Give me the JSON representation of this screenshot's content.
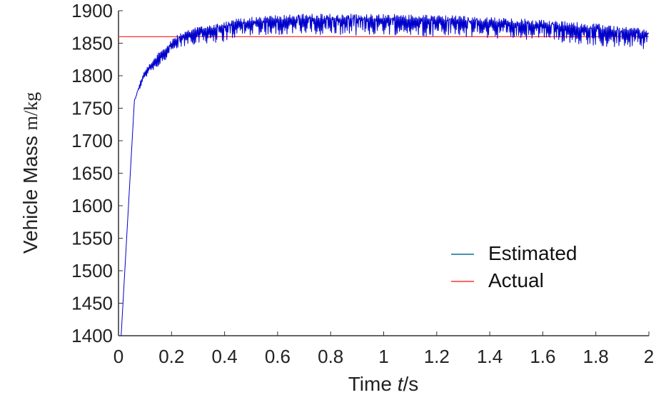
{
  "chart_data": {
    "type": "line",
    "title": "",
    "xlabel": {
      "prefix": "Time ",
      "var": "t",
      "suffix": "/s"
    },
    "ylabel": {
      "main": "Vehicle Mass ",
      "unit": "m/kg"
    },
    "xlim": [
      0,
      2
    ],
    "ylim": [
      1400,
      1900
    ],
    "xticks": [
      0,
      0.2,
      0.4,
      0.6,
      0.8,
      1,
      1.2,
      1.4,
      1.6,
      1.8,
      2
    ],
    "xtick_labels": [
      "0",
      "0.2",
      "0.4",
      "0.6",
      "0.8",
      "1",
      "1.2",
      "1.4",
      "1.6",
      "1.8",
      "2"
    ],
    "yticks": [
      1400,
      1450,
      1500,
      1550,
      1600,
      1650,
      1700,
      1750,
      1800,
      1850,
      1900
    ],
    "ytick_labels": [
      "1400",
      "1450",
      "1500",
      "1550",
      "1600",
      "1650",
      "1700",
      "1750",
      "1800",
      "1850",
      "1900"
    ],
    "grid": false,
    "legend_position": "lower-right",
    "series": [
      {
        "name": "Estimated",
        "color": "#0000cc",
        "legend_color": "#0a6f8f",
        "style": "noisy-envelope",
        "x": [
          0.01,
          0.06,
          0.07,
          0.08,
          0.1,
          0.12,
          0.14,
          0.16,
          0.18,
          0.2,
          0.22,
          0.24,
          0.26,
          0.28,
          0.3,
          0.35,
          0.4,
          0.45,
          0.5,
          0.6,
          0.7,
          0.8,
          0.9,
          1.0,
          1.1,
          1.2,
          1.3,
          1.4,
          1.5,
          1.6,
          1.7,
          1.8,
          1.9,
          2.0
        ],
        "upper": [
          1400,
          1762,
          1775,
          1790,
          1810,
          1820,
          1830,
          1840,
          1848,
          1855,
          1862,
          1866,
          1870,
          1873,
          1876,
          1880,
          1884,
          1888,
          1890,
          1893,
          1895,
          1895,
          1895,
          1895,
          1894,
          1893,
          1892,
          1890,
          1888,
          1886,
          1883,
          1880,
          1876,
          1872
        ],
        "lower": [
          1400,
          1762,
          1768,
          1778,
          1795,
          1805,
          1810,
          1815,
          1822,
          1830,
          1836,
          1842,
          1846,
          1848,
          1849,
          1850,
          1852,
          1860,
          1862,
          1863,
          1862,
          1863,
          1862,
          1863,
          1862,
          1860,
          1860,
          1858,
          1856,
          1853,
          1850,
          1846,
          1843,
          1841
        ]
      },
      {
        "name": "Actual",
        "color": "#ff3333",
        "x": [
          0,
          2
        ],
        "y": [
          1860,
          1860
        ]
      }
    ]
  }
}
